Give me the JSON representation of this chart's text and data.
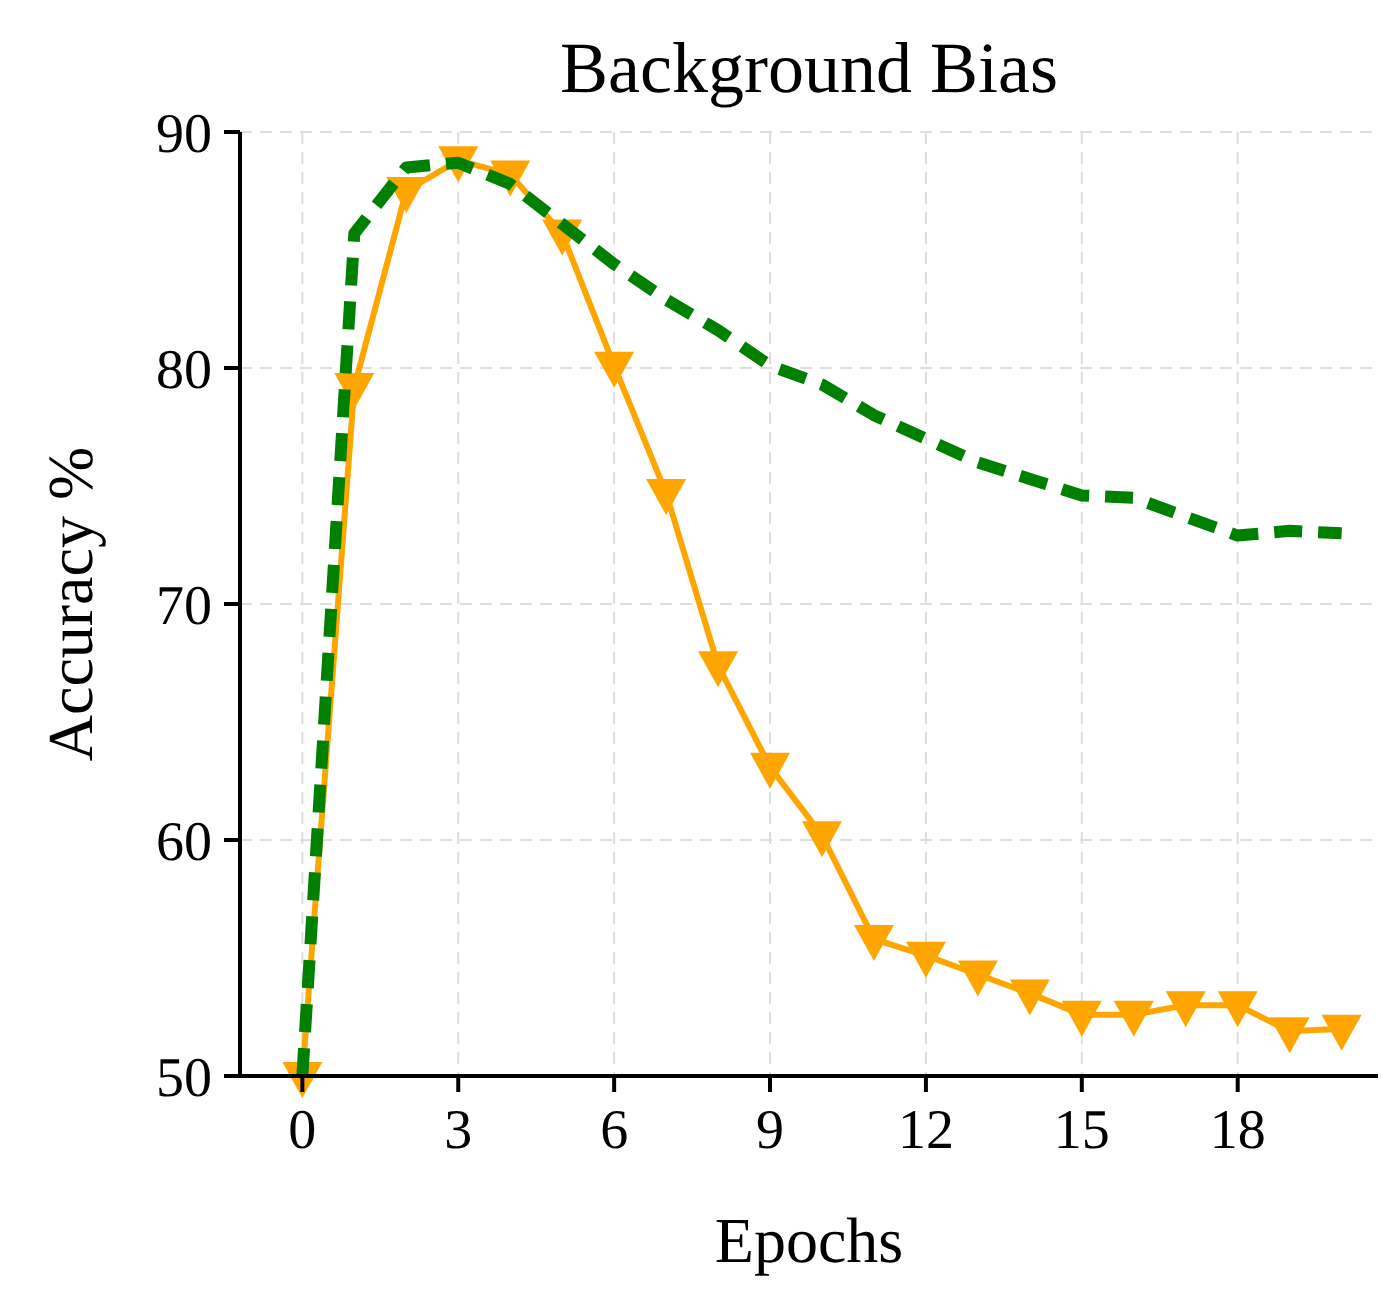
{
  "chart_data": {
    "type": "line",
    "title": "Background Bias",
    "xlabel": "Epochs",
    "ylabel": "Accuracy %",
    "x": [
      0,
      1,
      2,
      3,
      4,
      5,
      6,
      7,
      8,
      9,
      10,
      11,
      12,
      13,
      14,
      15,
      16,
      17,
      18,
      19,
      20
    ],
    "series": [
      {
        "color": "#ffa500",
        "marker": "triangle",
        "line_style": "solid",
        "values": [
          50,
          79.2,
          87.5,
          88.8,
          88.2,
          85.7,
          80.1,
          74.7,
          67.4,
          63.1,
          60.2,
          55.8,
          55.1,
          54.3,
          53.5,
          52.6,
          52.6,
          53.0,
          53.0,
          51.9,
          52.0
        ]
      },
      {
        "color": "#008000",
        "marker": "none",
        "line_style": "dashed",
        "values": [
          50,
          85.7,
          88.5,
          88.7,
          87.8,
          86.1,
          84.4,
          82.9,
          81.6,
          80.1,
          79.3,
          78.0,
          77.0,
          76.0,
          75.3,
          74.6,
          74.5,
          73.7,
          72.9,
          73.1,
          73.0
        ]
      }
    ],
    "xlim": [
      -1.2,
      20.7
    ],
    "xticks": [
      0,
      3,
      6,
      9,
      12,
      15,
      18
    ],
    "ylim": [
      50,
      90
    ],
    "yticks": [
      50,
      60,
      70,
      80,
      90
    ],
    "grid": true
  }
}
